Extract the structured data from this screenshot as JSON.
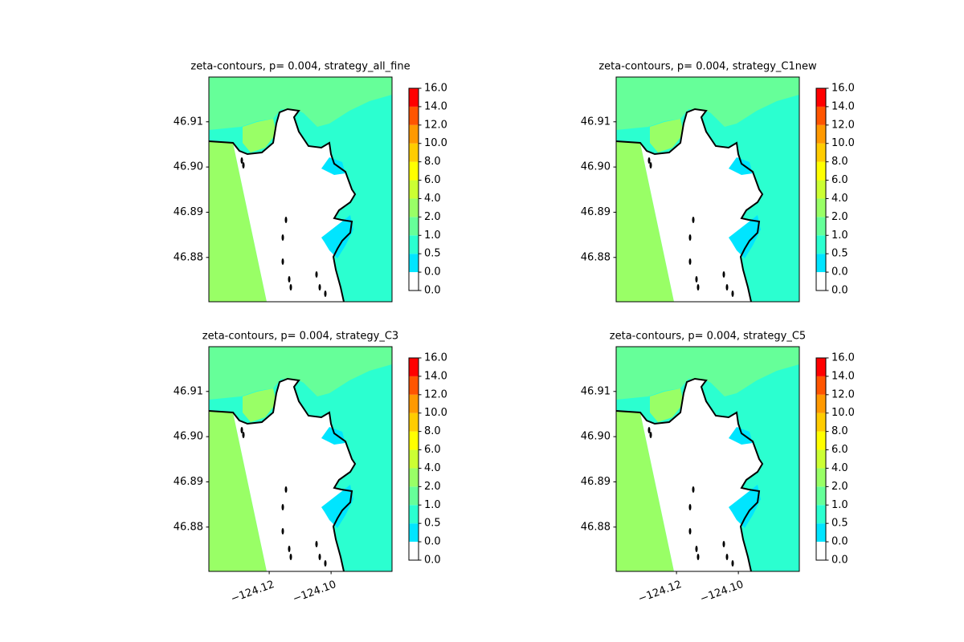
{
  "chart_data": [
    {
      "type": "contour",
      "title": "zeta-contours, p= 0.004, strategy_all_fine",
      "xlim": [
        -124.1395,
        -124.0803
      ],
      "ylim": [
        46.8702,
        46.9199
      ],
      "yticks": [
        46.88,
        46.89,
        {
          "value": 46.9,
          "label": "46.90"
        },
        46.91
      ],
      "colorbar": {
        "ticks": [
          {
            "value": 0,
            "label": "0.0"
          },
          {
            "value": 0,
            "label": "0.0"
          },
          0.5,
          {
            "value": 1,
            "label": "1.0"
          },
          {
            "value": 2,
            "label": "2.0"
          },
          {
            "value": 4,
            "label": "4.0"
          },
          {
            "value": 6,
            "label": "6.0"
          },
          {
            "value": 8,
            "label": "8.0"
          },
          {
            "value": 10,
            "label": "10.0"
          },
          {
            "value": 12,
            "label": "12.0"
          },
          {
            "value": 14,
            "label": "14.0"
          },
          {
            "value": 16,
            "label": "16.0"
          }
        ],
        "colors": [
          "#ffffff",
          "#00e5ff",
          "#2bffd0",
          "#66ff99",
          "#99ff66",
          "#ccff33",
          "#ffff00",
          "#ffcc00",
          "#ff9900",
          "#ff5500",
          "#ff0000"
        ]
      }
    },
    {
      "type": "contour",
      "title": "zeta-contours, p= 0.004, strategy_C1new",
      "xlim": [
        -124.1395,
        -124.0803
      ],
      "ylim": [
        46.8702,
        46.9199
      ],
      "yticks": [
        46.88,
        46.89,
        {
          "value": 46.9,
          "label": "46.90"
        },
        46.91
      ],
      "colorbar": {
        "ticks": [
          {
            "value": 0,
            "label": "0.0"
          },
          {
            "value": 0,
            "label": "0.0"
          },
          0.5,
          {
            "value": 1,
            "label": "1.0"
          },
          {
            "value": 2,
            "label": "2.0"
          },
          {
            "value": 4,
            "label": "4.0"
          },
          {
            "value": 6,
            "label": "6.0"
          },
          {
            "value": 8,
            "label": "8.0"
          },
          {
            "value": 10,
            "label": "10.0"
          },
          {
            "value": 12,
            "label": "12.0"
          },
          {
            "value": 14,
            "label": "14.0"
          },
          {
            "value": 16,
            "label": "16.0"
          }
        ],
        "colors": [
          "#ffffff",
          "#00e5ff",
          "#2bffd0",
          "#66ff99",
          "#99ff66",
          "#ccff33",
          "#ffff00",
          "#ffcc00",
          "#ff9900",
          "#ff5500",
          "#ff0000"
        ]
      }
    },
    {
      "type": "contour",
      "title": "zeta-contours, p= 0.004, strategy_C3",
      "xlim": [
        -124.1395,
        -124.0803
      ],
      "ylim": [
        46.8702,
        46.9199
      ],
      "xticks": [
        {
          "value": -124.12,
          "label": "−124.12"
        },
        {
          "value": -124.1,
          "label": "−124.10"
        }
      ],
      "yticks": [
        46.88,
        46.89,
        {
          "value": 46.9,
          "label": "46.90"
        },
        46.91
      ],
      "colorbar": {
        "ticks": [
          {
            "value": 0,
            "label": "0.0"
          },
          {
            "value": 0,
            "label": "0.0"
          },
          0.5,
          {
            "value": 1,
            "label": "1.0"
          },
          {
            "value": 2,
            "label": "2.0"
          },
          {
            "value": 4,
            "label": "4.0"
          },
          {
            "value": 6,
            "label": "6.0"
          },
          {
            "value": 8,
            "label": "8.0"
          },
          {
            "value": 10,
            "label": "10.0"
          },
          {
            "value": 12,
            "label": "12.0"
          },
          {
            "value": 14,
            "label": "14.0"
          },
          {
            "value": 16,
            "label": "16.0"
          }
        ],
        "colors": [
          "#ffffff",
          "#00e5ff",
          "#2bffd0",
          "#66ff99",
          "#99ff66",
          "#ccff33",
          "#ffff00",
          "#ffcc00",
          "#ff9900",
          "#ff5500",
          "#ff0000"
        ]
      }
    },
    {
      "type": "contour",
      "title": "zeta-contours, p= 0.004, strategy_C5",
      "xlim": [
        -124.1395,
        -124.0803
      ],
      "ylim": [
        46.8702,
        46.9199
      ],
      "xticks": [
        {
          "value": -124.12,
          "label": "−124.12"
        },
        {
          "value": -124.1,
          "label": "−124.10"
        }
      ],
      "yticks": [
        46.88,
        46.89,
        {
          "value": 46.9,
          "label": "46.90"
        },
        46.91
      ],
      "colorbar": {
        "ticks": [
          {
            "value": 0,
            "label": "0.0"
          },
          {
            "value": 0,
            "label": "0.0"
          },
          0.5,
          {
            "value": 1,
            "label": "1.0"
          },
          {
            "value": 2,
            "label": "2.0"
          },
          {
            "value": 4,
            "label": "4.0"
          },
          {
            "value": 6,
            "label": "6.0"
          },
          {
            "value": 8,
            "label": "8.0"
          },
          {
            "value": 10,
            "label": "10.0"
          },
          {
            "value": 12,
            "label": "12.0"
          },
          {
            "value": 14,
            "label": "14.0"
          },
          {
            "value": 16,
            "label": "16.0"
          }
        ],
        "colors": [
          "#ffffff",
          "#00e5ff",
          "#2bffd0",
          "#66ff99",
          "#99ff66",
          "#ccff33",
          "#ffff00",
          "#ffcc00",
          "#ff9900",
          "#ff5500",
          "#ff0000"
        ]
      }
    }
  ]
}
